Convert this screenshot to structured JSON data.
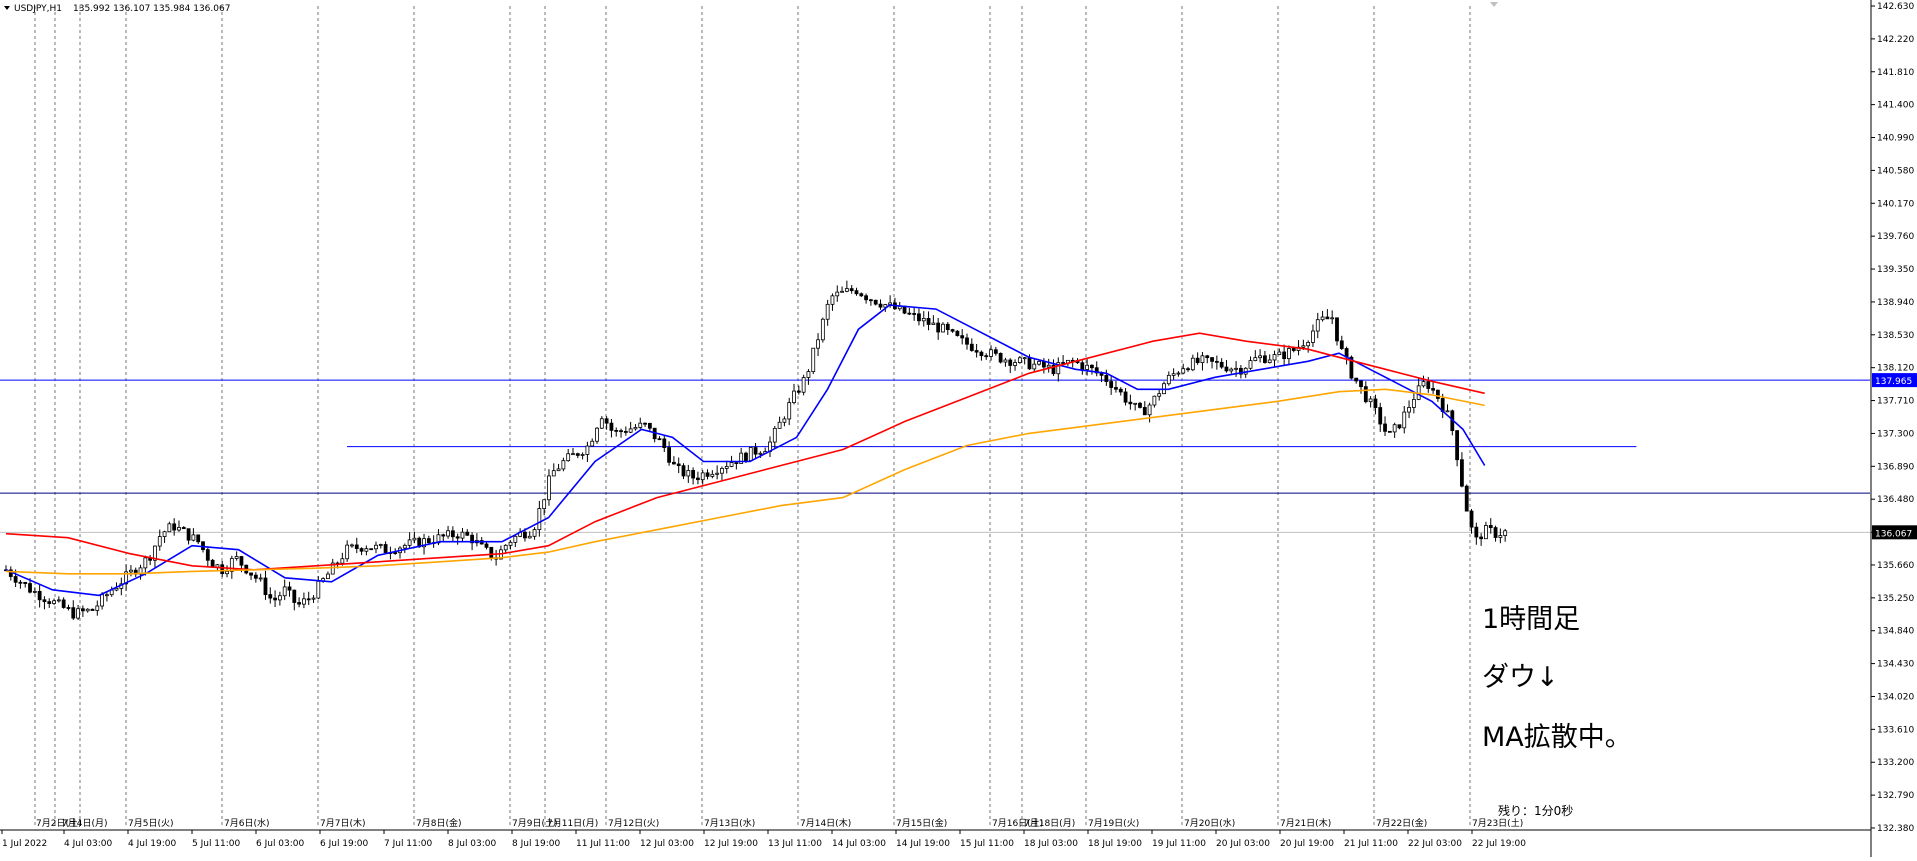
{
  "header": {
    "dropdown_icon": "triangle-down-icon",
    "symbol": "USDJPY,H1",
    "ohlc": "135.992 136.107 135.984 136.067"
  },
  "annotations": [
    "1時間足",
    "ダウ↓",
    "MA拡散中。"
  ],
  "countdown": "残り：1分0秒",
  "price_axis": {
    "ticks": [
      "142.630",
      "142.220",
      "141.810",
      "141.400",
      "140.990",
      "140.580",
      "140.170",
      "139.760",
      "139.350",
      "138.940",
      "138.530",
      "138.120",
      "137.710",
      "137.300",
      "136.890",
      "136.480",
      "136.067",
      "135.660",
      "135.250",
      "134.840",
      "134.430",
      "134.020",
      "133.610",
      "133.200",
      "132.790",
      "132.380"
    ],
    "current_price_label": "136.067",
    "line_price_label": "137.965"
  },
  "time_axis": {
    "date_labels": [
      "7月2日(土)",
      "7月4日(月)",
      "7月5日(火)",
      "7月6日(水)",
      "7月7日(木)",
      "7月8日(金)",
      "7月9日(土)",
      "7月11日(月)",
      "7月12日(火)",
      "7月13日(水)",
      "7月14日(木)",
      "7月15日(金)",
      "7月16日(土)",
      "7月18日(月)",
      "7月19日(火)",
      "7月20日(水)",
      "7月21日(木)",
      "7月22日(金)",
      "7月23日(土)"
    ],
    "time_labels": [
      "1 Jul 2022",
      "4 Jul 03:00",
      "4 Jul 19:00",
      "5 Jul 11:00",
      "6 Jul 03:00",
      "6 Jul 19:00",
      "7 Jul 11:00",
      "8 Jul 03:00",
      "8 Jul 19:00",
      "11 Jul 11:00",
      "12 Jul 03:00",
      "12 Jul 19:00",
      "13 Jul 11:00",
      "14 Jul 03:00",
      "14 Jul 19:00",
      "15 Jul 11:00",
      "18 Jul 03:00",
      "18 Jul 19:00",
      "19 Jul 11:00",
      "20 Jul 03:00",
      "20 Jul 19:00",
      "21 Jul 11:00",
      "22 Jul 03:00",
      "22 Jul 19:00"
    ]
  },
  "colors": {
    "background": "#ffffff",
    "candle": "#000000",
    "ma_short": "#0000ff",
    "ma_mid": "#ff0000",
    "ma_long": "#ffa500",
    "hline_blue": "#0000ff",
    "hline_dark": "#000080",
    "price_line": "#c0c0c0",
    "grid_separator": "#555555"
  },
  "chart_data": {
    "type": "candlestick",
    "symbol": "USDJPY",
    "timeframe": "H1",
    "ohlc_last": {
      "open": 135.992,
      "high": 136.107,
      "low": 135.984,
      "close": 136.067
    },
    "ylim": [
      132.38,
      142.63
    ],
    "bar_count": 320,
    "close_path": [
      [
        0,
        135.6
      ],
      [
        8,
        135.35
      ],
      [
        15,
        135.2
      ],
      [
        22,
        135.05
      ],
      [
        28,
        135.1
      ],
      [
        34,
        135.35
      ],
      [
        40,
        135.55
      ],
      [
        46,
        135.75
      ],
      [
        50,
        136.05
      ],
      [
        54,
        136.15
      ],
      [
        58,
        136.05
      ],
      [
        62,
        135.95
      ],
      [
        66,
        135.7
      ],
      [
        70,
        135.6
      ],
      [
        74,
        135.75
      ],
      [
        78,
        135.6
      ],
      [
        82,
        135.45
      ],
      [
        86,
        135.2
      ],
      [
        90,
        135.35
      ],
      [
        94,
        135.15
      ],
      [
        98,
        135.25
      ],
      [
        104,
        135.55
      ],
      [
        110,
        135.85
      ],
      [
        116,
        135.9
      ],
      [
        122,
        135.85
      ],
      [
        128,
        135.9
      ],
      [
        134,
        135.95
      ],
      [
        140,
        136.0
      ],
      [
        146,
        136.05
      ],
      [
        150,
        136.0
      ],
      [
        154,
        135.85
      ],
      [
        158,
        135.75
      ],
      [
        162,
        135.95
      ],
      [
        166,
        136.05
      ],
      [
        170,
        136.1
      ],
      [
        173,
        136.45
      ],
      [
        176,
        136.8
      ],
      [
        180,
        136.95
      ],
      [
        184,
        137.05
      ],
      [
        188,
        137.15
      ],
      [
        192,
        137.55
      ],
      [
        196,
        137.3
      ],
      [
        200,
        137.35
      ],
      [
        206,
        137.4
      ],
      [
        212,
        137.15
      ],
      [
        216,
        136.85
      ],
      [
        222,
        136.75
      ],
      [
        228,
        136.85
      ],
      [
        234,
        136.95
      ],
      [
        240,
        137.05
      ],
      [
        246,
        137.15
      ],
      [
        250,
        137.45
      ],
      [
        254,
        137.75
      ],
      [
        258,
        138.0
      ],
      [
        262,
        138.5
      ],
      [
        266,
        139.0
      ],
      [
        270,
        139.05
      ],
      [
        274,
        139.1
      ],
      [
        278,
        139.0
      ],
      [
        284,
        138.9
      ],
      [
        290,
        138.8
      ],
      [
        296,
        138.7
      ],
      [
        302,
        138.6
      ],
      [
        308,
        138.45
      ],
      [
        314,
        138.35
      ],
      [
        320,
        138.25
      ],
      [
        326,
        138.2
      ],
      [
        332,
        138.15
      ],
      [
        338,
        138.1
      ],
      [
        344,
        138.2
      ],
      [
        350,
        138.1
      ],
      [
        356,
        137.95
      ],
      [
        362,
        137.7
      ],
      [
        366,
        137.55
      ],
      [
        370,
        137.7
      ],
      [
        374,
        137.95
      ],
      [
        380,
        138.15
      ],
      [
        386,
        138.2
      ],
      [
        392,
        138.15
      ],
      [
        398,
        138.1
      ],
      [
        404,
        138.25
      ],
      [
        410,
        138.25
      ],
      [
        416,
        138.35
      ],
      [
        420,
        138.5
      ],
      [
        424,
        138.7
      ],
      [
        428,
        138.75
      ],
      [
        430,
        138.4
      ],
      [
        434,
        138.05
      ],
      [
        438,
        137.8
      ],
      [
        442,
        137.55
      ],
      [
        446,
        137.25
      ],
      [
        450,
        137.45
      ],
      [
        454,
        137.75
      ],
      [
        458,
        137.95
      ],
      [
        462,
        137.75
      ],
      [
        466,
        137.45
      ],
      [
        468,
        137.05
      ],
      [
        470,
        136.6
      ],
      [
        472,
        136.2
      ],
      [
        474,
        135.95
      ],
      [
        476,
        136.05
      ],
      [
        478,
        136.1
      ],
      [
        480,
        136.05
      ],
      [
        484,
        136.07
      ]
    ],
    "x_range": [
      0,
      484
    ],
    "moving_averages": [
      {
        "color": "#0000ff",
        "path": [
          [
            0,
            135.6
          ],
          [
            15,
            135.35
          ],
          [
            30,
            135.28
          ],
          [
            45,
            135.55
          ],
          [
            60,
            135.9
          ],
          [
            75,
            135.85
          ],
          [
            90,
            135.5
          ],
          [
            105,
            135.45
          ],
          [
            120,
            135.78
          ],
          [
            140,
            135.95
          ],
          [
            160,
            135.95
          ],
          [
            175,
            136.25
          ],
          [
            190,
            136.95
          ],
          [
            205,
            137.35
          ],
          [
            215,
            137.25
          ],
          [
            225,
            136.95
          ],
          [
            240,
            136.95
          ],
          [
            255,
            137.25
          ],
          [
            265,
            137.85
          ],
          [
            275,
            138.6
          ],
          [
            285,
            138.9
          ],
          [
            300,
            138.85
          ],
          [
            315,
            138.55
          ],
          [
            330,
            138.25
          ],
          [
            345,
            138.1
          ],
          [
            355,
            138.05
          ],
          [
            365,
            137.85
          ],
          [
            375,
            137.85
          ],
          [
            390,
            138.0
          ],
          [
            405,
            138.1
          ],
          [
            420,
            138.2
          ],
          [
            430,
            138.3
          ],
          [
            440,
            138.1
          ],
          [
            450,
            137.9
          ],
          [
            460,
            137.7
          ],
          [
            470,
            137.35
          ],
          [
            477,
            136.9
          ]
        ]
      },
      {
        "color": "#ff0000",
        "path": [
          [
            0,
            136.05
          ],
          [
            20,
            136.0
          ],
          [
            40,
            135.8
          ],
          [
            60,
            135.65
          ],
          [
            80,
            135.6
          ],
          [
            100,
            135.65
          ],
          [
            120,
            135.7
          ],
          [
            140,
            135.75
          ],
          [
            160,
            135.8
          ],
          [
            175,
            135.9
          ],
          [
            190,
            136.2
          ],
          [
            210,
            136.5
          ],
          [
            230,
            136.7
          ],
          [
            250,
            136.9
          ],
          [
            270,
            137.1
          ],
          [
            290,
            137.45
          ],
          [
            310,
            137.75
          ],
          [
            330,
            138.05
          ],
          [
            350,
            138.25
          ],
          [
            370,
            138.45
          ],
          [
            385,
            138.55
          ],
          [
            400,
            138.45
          ],
          [
            420,
            138.35
          ],
          [
            430,
            138.25
          ],
          [
            445,
            138.1
          ],
          [
            460,
            137.95
          ],
          [
            477,
            137.8
          ]
        ]
      },
      {
        "color": "#ffa500",
        "path": [
          [
            0,
            135.58
          ],
          [
            20,
            135.55
          ],
          [
            40,
            135.55
          ],
          [
            60,
            135.58
          ],
          [
            80,
            135.6
          ],
          [
            100,
            135.62
          ],
          [
            120,
            135.65
          ],
          [
            140,
            135.7
          ],
          [
            160,
            135.75
          ],
          [
            175,
            135.82
          ],
          [
            190,
            135.95
          ],
          [
            210,
            136.1
          ],
          [
            230,
            136.25
          ],
          [
            250,
            136.4
          ],
          [
            270,
            136.5
          ],
          [
            290,
            136.85
          ],
          [
            310,
            137.15
          ],
          [
            330,
            137.3
          ],
          [
            350,
            137.4
          ],
          [
            370,
            137.5
          ],
          [
            390,
            137.6
          ],
          [
            410,
            137.7
          ],
          [
            430,
            137.82
          ],
          [
            445,
            137.85
          ],
          [
            460,
            137.78
          ],
          [
            477,
            137.65
          ]
        ]
      }
    ],
    "horizontal_lines": [
      {
        "price": 137.965,
        "color": "#0000ff",
        "span": "full"
      },
      {
        "price": 137.135,
        "color": "#0000ff",
        "span": [
          110,
          484
        ]
      },
      {
        "price": 136.555,
        "color": "#000080",
        "span": "full"
      },
      {
        "price": 136.067,
        "color": "#c0c0c0",
        "span": "full"
      }
    ]
  }
}
